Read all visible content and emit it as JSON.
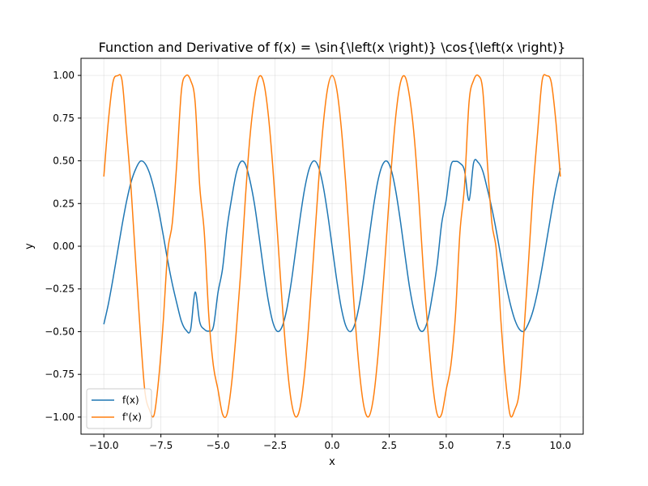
{
  "chart_data": {
    "type": "line",
    "title": "Function and Derivative of f(x) = \\sin{\\left(x \\right)} \\cos{\\left(x \\right)}",
    "xlabel": "x",
    "ylabel": "y",
    "xlim": [
      -11.0,
      11.0
    ],
    "ylim": [
      -1.1,
      1.1
    ],
    "x_ticks": [
      -10.0,
      -7.5,
      -5.0,
      -2.5,
      0.0,
      2.5,
      5.0,
      7.5,
      10.0
    ],
    "x_tick_labels": [
      "−10.0",
      "−7.5",
      "−5.0",
      "−2.5",
      "0.0",
      "2.5",
      "5.0",
      "7.5",
      "10.0"
    ],
    "y_ticks": [
      -1.0,
      -0.75,
      -0.5,
      -0.25,
      0.0,
      0.25,
      0.5,
      0.75,
      1.0
    ],
    "y_tick_labels": [
      "−1.00",
      "−0.75",
      "−0.50",
      "−0.25",
      "0.00",
      "0.25",
      "0.50",
      "0.75",
      "1.00"
    ],
    "grid": true,
    "legend_position": "lower-left",
    "series": [
      {
        "name": "f(x)",
        "color": "#1f77b4",
        "x": [
          -10.0,
          -9.8,
          -9.6,
          -9.4,
          -9.2,
          -9.0,
          -8.8,
          -8.6,
          -8.4,
          -8.2,
          -8.0,
          -7.8,
          -7.6,
          -7.4,
          -7.2,
          -7.0,
          -6.8,
          -6.6,
          -6.4,
          -6.2,
          -6.0,
          -5.8,
          -5.6,
          -5.4,
          -5.2,
          -5.0,
          -4.8,
          -4.6,
          -4.4,
          -4.2,
          -4.0,
          -3.8,
          -3.6,
          -3.4,
          -3.2,
          -3.0,
          -2.8,
          -2.6,
          -2.4,
          -2.2,
          -2.0,
          -1.8,
          -1.6,
          -1.4,
          -1.2,
          -1.0,
          -0.8,
          -0.6,
          -0.4,
          -0.2,
          0.0,
          0.2,
          0.4,
          0.6,
          0.8,
          1.0,
          1.2,
          1.4,
          1.6,
          1.8,
          2.0,
          2.2,
          2.4,
          2.6,
          2.8,
          3.0,
          3.2,
          3.4,
          3.6,
          3.8,
          4.0,
          4.2,
          4.4,
          4.6,
          4.8,
          5.0,
          5.2,
          5.4,
          5.6,
          5.8,
          6.0,
          6.2,
          6.4,
          6.6,
          6.8,
          7.0,
          7.2,
          7.4,
          7.6,
          7.8,
          8.0,
          8.2,
          8.4,
          8.6,
          8.8,
          9.0,
          9.2,
          9.4,
          9.6,
          9.8,
          10.0
        ],
        "y": [
          -0.4565,
          -0.3375,
          -0.1921,
          -0.0336,
          0.1237,
          0.2655,
          0.3787,
          0.4533,
          0.4977,
          0.4852,
          0.4289,
          0.3346,
          0.211,
          0.0668,
          -0.0856,
          -0.2206,
          -0.3357,
          -0.44,
          -0.4908,
          -0.489,
          -0.2683,
          -0.4427,
          -0.4861,
          -0.4967,
          -0.4708,
          -0.272,
          -0.1328,
          0.1088,
          0.2809,
          0.4266,
          0.4947,
          0.48,
          0.3854,
          0.2461,
          0.058,
          -0.1397,
          -0.3144,
          -0.4429,
          -0.4981,
          -0.4738,
          -0.3784,
          -0.2212,
          -0.0291,
          0.1675,
          0.3377,
          0.4546,
          0.4998,
          0.466,
          0.3587,
          0.1947,
          0.0,
          -0.1947,
          -0.3587,
          -0.466,
          -0.4998,
          -0.4546,
          -0.3377,
          -0.1675,
          0.0291,
          0.2212,
          0.3784,
          0.4738,
          0.4981,
          0.4429,
          0.3144,
          0.1397,
          -0.058,
          -0.2461,
          -0.3854,
          -0.48,
          -0.4947,
          -0.4266,
          -0.2809,
          -0.1088,
          0.1328,
          0.272,
          0.4708,
          0.4967,
          0.4861,
          0.4427,
          0.2683,
          0.489,
          0.4908,
          0.44,
          0.3357,
          0.2206,
          0.0856,
          -0.0668,
          -0.211,
          -0.3346,
          -0.4289,
          -0.4852,
          -0.4977,
          -0.4533,
          -0.3787,
          -0.2655,
          -0.1237,
          0.0336,
          0.1921,
          0.3375,
          0.4565
        ]
      },
      {
        "name": "f'(x)",
        "color": "#ff7f0e",
        "x": [
          -10.0,
          -9.8,
          -9.6,
          -9.4,
          -9.2,
          -9.0,
          -8.8,
          -8.6,
          -8.4,
          -8.2,
          -8.0,
          -7.8,
          -7.6,
          -7.4,
          -7.2,
          -7.0,
          -6.8,
          -6.6,
          -6.4,
          -6.2,
          -6.0,
          -5.8,
          -5.6,
          -5.4,
          -5.2,
          -5.0,
          -4.8,
          -4.6,
          -4.4,
          -4.2,
          -4.0,
          -3.8,
          -3.6,
          -3.4,
          -3.2,
          -3.0,
          -2.8,
          -2.6,
          -2.4,
          -2.2,
          -2.0,
          -1.8,
          -1.6,
          -1.4,
          -1.2,
          -1.0,
          -0.8,
          -0.6,
          -0.4,
          -0.2,
          0.0,
          0.2,
          0.4,
          0.6,
          0.8,
          1.0,
          1.2,
          1.4,
          1.6,
          1.8,
          2.0,
          2.2,
          2.4,
          2.6,
          2.8,
          3.0,
          3.2,
          3.4,
          3.6,
          3.8,
          4.0,
          4.2,
          4.4,
          4.6,
          4.8,
          5.0,
          5.2,
          5.4,
          5.6,
          5.8,
          6.0,
          6.2,
          6.4,
          6.6,
          6.8,
          7.0,
          7.2,
          7.4,
          7.6,
          7.8,
          8.0,
          8.2,
          8.4,
          8.6,
          8.8,
          9.0,
          9.2,
          9.4,
          9.6,
          9.8,
          10.0
        ],
        "y": [
          0.4081,
          0.735,
          0.9598,
          0.9978,
          0.9683,
          0.6603,
          0.3255,
          -0.1023,
          -0.5094,
          -0.8508,
          -0.9577,
          -0.9887,
          -0.7812,
          -0.4465,
          -0.0303,
          0.1367,
          0.4936,
          0.913,
          0.999,
          0.9713,
          0.8439,
          0.3536,
          0.0813,
          -0.4098,
          -0.6999,
          -0.8391,
          -0.9823,
          -0.9817,
          -0.8004,
          -0.5013,
          -0.1455,
          0.2794,
          0.6374,
          0.8698,
          0.9917,
          0.9602,
          0.7756,
          0.4685,
          0.087,
          -0.3073,
          -0.6536,
          -0.8968,
          -0.9983,
          -0.9422,
          -0.7374,
          -0.4161,
          -0.0292,
          0.3624,
          0.6967,
          0.9211,
          1.0,
          0.9211,
          0.6967,
          0.3624,
          -0.0292,
          -0.4161,
          -0.7374,
          -0.9422,
          -0.9983,
          -0.8968,
          -0.6536,
          -0.3073,
          0.087,
          0.4685,
          0.7756,
          0.9602,
          0.9917,
          0.8698,
          0.6374,
          0.2794,
          -0.1455,
          -0.5013,
          -0.8004,
          -0.9817,
          -0.9823,
          -0.8391,
          -0.6999,
          -0.4098,
          0.0813,
          0.3536,
          0.8439,
          0.9713,
          0.999,
          0.913,
          0.4936,
          0.1367,
          -0.0303,
          -0.4465,
          -0.7812,
          -0.9887,
          -0.9577,
          -0.8508,
          -0.5094,
          -0.1023,
          0.3255,
          0.6603,
          0.9683,
          0.9978,
          0.9598,
          0.735,
          0.4081
        ]
      }
    ]
  }
}
